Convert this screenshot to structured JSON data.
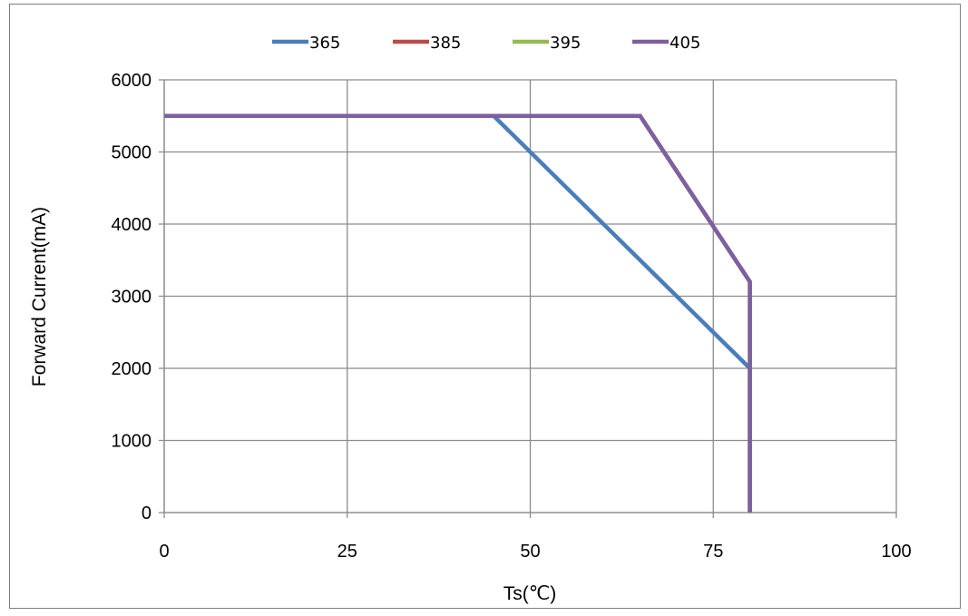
{
  "chart_data": {
    "type": "line",
    "xlabel": "Ts(℃)",
    "ylabel": "Forward Current(mA)",
    "xlim": [
      0,
      100
    ],
    "ylim": [
      0,
      6000
    ],
    "xticks": [
      "0",
      "25",
      "50",
      "75",
      "100"
    ],
    "yticks": [
      "0",
      "1000",
      "2000",
      "3000",
      "4000",
      "5000",
      "6000"
    ],
    "grid": true,
    "legend_position": "top",
    "series": [
      {
        "name": "365",
        "color": "#4a7ebb",
        "x": [
          0,
          45,
          80,
          80
        ],
        "y": [
          5500,
          5500,
          2000,
          0
        ]
      },
      {
        "name": "385",
        "color": "#be4b48",
        "x": [
          0,
          65,
          80,
          80
        ],
        "y": [
          5500,
          5500,
          3200,
          0
        ]
      },
      {
        "name": "395",
        "color": "#98b954",
        "x": [
          0,
          65,
          80,
          80
        ],
        "y": [
          5500,
          5500,
          3200,
          0
        ]
      },
      {
        "name": "405",
        "color": "#7d60a0",
        "x": [
          0,
          65,
          80,
          80
        ],
        "y": [
          5500,
          5500,
          3200,
          0
        ]
      }
    ]
  }
}
